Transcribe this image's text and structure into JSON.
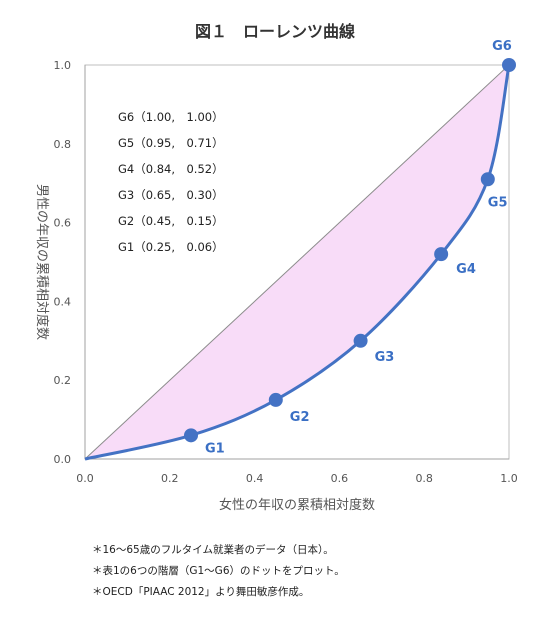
{
  "chart_data": {
    "type": "line",
    "title": "図１　ローレンツ曲線",
    "xlabel": "女性の年収の累積相対度数",
    "ylabel": "男性の年収の累積相対度数",
    "xlim": [
      0,
      1
    ],
    "ylim": [
      0,
      1
    ],
    "xticks": [
      "0.0",
      "0.2",
      "0.4",
      "0.6",
      "0.8",
      "1.0"
    ],
    "yticks": [
      "0.0",
      "0.2",
      "0.4",
      "0.6",
      "0.8",
      "1.0"
    ],
    "grid": false,
    "series": [
      {
        "type": "scatter",
        "color": "#4472c4",
        "points": [
          {
            "label": "G1",
            "x": 0.25,
            "y": 0.06
          },
          {
            "label": "G2",
            "x": 0.45,
            "y": 0.15
          },
          {
            "label": "G3",
            "x": 0.65,
            "y": 0.3
          },
          {
            "label": "G4",
            "x": 0.84,
            "y": 0.52
          },
          {
            "label": "G5",
            "x": 0.95,
            "y": 0.71
          },
          {
            "label": "G6",
            "x": 1.0,
            "y": 1.0
          }
        ]
      },
      {
        "type": "line",
        "style": "equality-diagonal",
        "color": "#8c8c8c",
        "x": [
          0,
          1
        ],
        "y": [
          0,
          1
        ]
      }
    ],
    "fill_between_color": "#f8dcf8",
    "annotations": [
      "G6（1.00,　1.00）",
      "G5（0.95,　0.71）",
      "G4（0.84,　0.52）",
      "G3（0.65,　0.30）",
      "G2（0.45,　0.15）",
      "G1（0.25,　0.06）"
    ]
  },
  "notes": [
    "＊16〜65歳のフルタイム就業者のデータ（日本）。",
    "＊表1の6つの階層（G1〜G6）のドットをプロット。",
    "＊OECD「PIAAC 2012」より舞田敏彦作成。"
  ]
}
